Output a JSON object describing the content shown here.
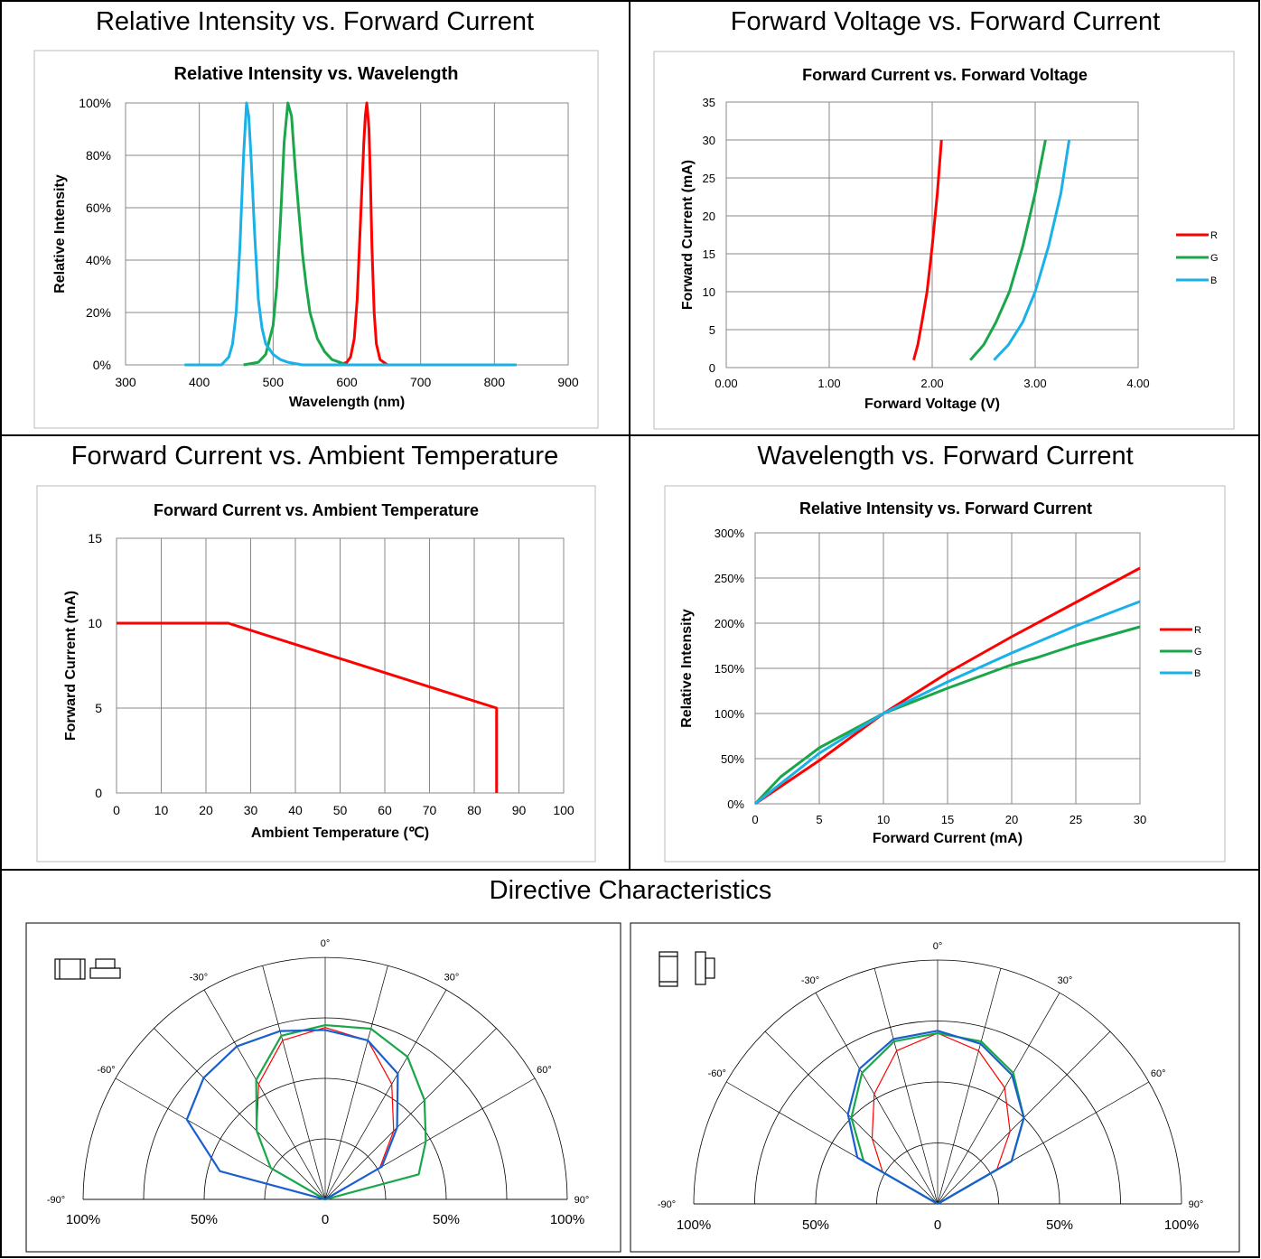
{
  "cell_titles": {
    "top_left": "Relative Intensity vs. Forward Current",
    "top_right": "Forward Voltage vs. Forward Current",
    "mid_left": "Forward Current vs. Ambient Temperature",
    "mid_right": "Wavelength vs. Forward Current",
    "bottom": "Directive Characteristics"
  },
  "colors": {
    "R": "#ff0000",
    "G": "#1aa64a",
    "B": "#1ab0e8",
    "blue_pol": "#1a5fd0",
    "grid": "#888888"
  },
  "chart_data": [
    {
      "id": "spectrum",
      "type": "line",
      "title": "Relative Intensity vs. Wavelength",
      "xlabel": "Wavelength (nm)",
      "ylabel": "Relative Intensity",
      "xlim": [
        300,
        900
      ],
      "ylim": [
        0,
        100
      ],
      "xticks": [
        "300",
        "400",
        "500",
        "600",
        "700",
        "800",
        "900"
      ],
      "yticks": [
        "0%",
        "20%",
        "40%",
        "60%",
        "80%",
        "100%"
      ],
      "grid": true,
      "series": [
        {
          "color": "R",
          "x": [
            590,
            600,
            605,
            610,
            614,
            617,
            620,
            623,
            625,
            627,
            628,
            630,
            632,
            634,
            637,
            640,
            645,
            655
          ],
          "y": [
            0,
            1,
            3,
            10,
            25,
            45,
            65,
            85,
            95,
            100,
            97,
            90,
            70,
            45,
            20,
            8,
            2,
            0
          ]
        },
        {
          "color": "G",
          "x": [
            460,
            480,
            490,
            500,
            505,
            510,
            515,
            520,
            525,
            530,
            535,
            540,
            545,
            550,
            560,
            570,
            580,
            590,
            600,
            620
          ],
          "y": [
            0,
            1,
            4,
            15,
            30,
            55,
            85,
            100,
            95,
            75,
            58,
            42,
            30,
            20,
            10,
            5,
            2,
            1,
            0,
            0
          ]
        },
        {
          "color": "B",
          "x": [
            380,
            420,
            430,
            440,
            445,
            450,
            455,
            460,
            464,
            467,
            470,
            475,
            480,
            485,
            490,
            500,
            510,
            520,
            540,
            560,
            600,
            700,
            800,
            830
          ],
          "y": [
            0,
            0,
            0,
            3,
            8,
            20,
            45,
            80,
            100,
            95,
            80,
            50,
            25,
            14,
            8,
            4,
            2,
            1,
            0,
            0,
            0,
            0,
            0,
            0
          ]
        }
      ]
    },
    {
      "id": "iv",
      "type": "line",
      "title": "Forward Current vs. Forward Voltage",
      "xlabel": "Forward Voltage  (V)",
      "ylabel": "Forward Current (mA)",
      "xlim": [
        0,
        4
      ],
      "ylim": [
        0,
        35
      ],
      "xticks": [
        "0.00",
        "1.00",
        "2.00",
        "3.00",
        "4.00"
      ],
      "yticks": [
        "0",
        "5",
        "10",
        "15",
        "20",
        "25",
        "30",
        "35"
      ],
      "legend_position": "right",
      "grid": true,
      "series": [
        {
          "name": "R",
          "color": "R",
          "x": [
            1.82,
            1.86,
            1.9,
            1.95,
            2.0,
            2.05,
            2.09
          ],
          "y": [
            1,
            3,
            6,
            10,
            16,
            23,
            30
          ]
        },
        {
          "name": "G",
          "x": [
            2.37,
            2.5,
            2.62,
            2.75,
            2.88,
            3.0,
            3.1
          ],
          "y": [
            1,
            3,
            6,
            10,
            16,
            23,
            30
          ],
          "color": "G"
        },
        {
          "name": "B",
          "x": [
            2.6,
            2.74,
            2.88,
            3.0,
            3.13,
            3.25,
            3.33
          ],
          "y": [
            1,
            3,
            6,
            10,
            16,
            23,
            30
          ],
          "color": "B"
        }
      ]
    },
    {
      "id": "derating",
      "type": "line",
      "title": "Forward Current vs. Ambient Temperature",
      "xlabel": "Ambient Temperature (℃)",
      "ylabel": "Forward Current (mA)",
      "xlim": [
        0,
        100
      ],
      "ylim": [
        0,
        15
      ],
      "xticks": [
        "0",
        "10",
        "20",
        "30",
        "40",
        "50",
        "60",
        "70",
        "80",
        "90",
        "100"
      ],
      "yticks": [
        "0",
        "5",
        "10",
        "15"
      ],
      "grid": true,
      "series": [
        {
          "color": "R",
          "x": [
            0,
            25,
            85,
            85
          ],
          "y": [
            10,
            10,
            5,
            0
          ]
        }
      ]
    },
    {
      "id": "intensity",
      "type": "line",
      "title": "Relative Intensity   vs. Forward Current",
      "xlabel": "Forward Current (mA)",
      "ylabel": "Relative Intensity",
      "xlim": [
        0,
        30
      ],
      "ylim": [
        0,
        300
      ],
      "xticks": [
        "0",
        "5",
        "10",
        "15",
        "20",
        "25",
        "30"
      ],
      "yticks": [
        "0%",
        "50%",
        "100%",
        "150%",
        "200%",
        "250%",
        "300%"
      ],
      "legend_position": "right",
      "grid": true,
      "series": [
        {
          "name": "R",
          "color": "R",
          "x": [
            0,
            5,
            10,
            15,
            20,
            25,
            30
          ],
          "y": [
            0,
            48,
            100,
            145,
            185,
            223,
            261
          ]
        },
        {
          "name": "G",
          "color": "G",
          "x": [
            0,
            2,
            5,
            10,
            15,
            20,
            22,
            25,
            30
          ],
          "y": [
            0,
            30,
            62,
            100,
            128,
            154,
            162,
            176,
            196
          ]
        },
        {
          "name": "B",
          "color": "B",
          "x": [
            0,
            5,
            10,
            15,
            20,
            25,
            30
          ],
          "y": [
            0,
            56,
            100,
            135,
            167,
            197,
            224
          ]
        }
      ]
    },
    {
      "id": "polar_left",
      "type": "line",
      "angle_labels": [
        "0°",
        "30°",
        "-30°",
        "60°",
        "-60°",
        "90°",
        "-90°"
      ],
      "radial_labels": [
        "100%",
        "50%",
        "0",
        "50%",
        "100%"
      ],
      "series": [
        {
          "color": "R",
          "angle_deg": [
            -90,
            -60,
            -45,
            -30,
            -15,
            0,
            15,
            30,
            45,
            60,
            90
          ],
          "r": [
            0,
            26,
            40,
            55,
            68,
            71,
            68,
            55,
            40,
            26,
            0
          ]
        },
        {
          "color": "G",
          "angle_deg": [
            -90,
            -60,
            -45,
            -30,
            -15,
            0,
            15,
            30,
            45,
            60,
            75,
            90
          ],
          "r": [
            0,
            26,
            40,
            57,
            70,
            72,
            73,
            68,
            58,
            48,
            40,
            0
          ]
        },
        {
          "color": "blue_pol",
          "angle_deg": [
            -90,
            -75,
            -60,
            -45,
            -30,
            -15,
            0,
            15,
            30,
            45,
            60,
            90
          ],
          "r": [
            0,
            45,
            66,
            71,
            73,
            72,
            70,
            68,
            60,
            42,
            27,
            0
          ]
        }
      ]
    },
    {
      "id": "polar_right",
      "type": "line",
      "angle_labels": [
        "0°",
        "30°",
        "-30°",
        "60°",
        "-60°",
        "90°",
        "-90°"
      ],
      "radial_labels": [
        "100%",
        "50%",
        "0",
        "50%",
        "100%"
      ],
      "series": [
        {
          "color": "R",
          "angle_deg": [
            -90,
            -60,
            -45,
            -30,
            -15,
            0,
            15,
            30,
            45,
            60,
            90
          ],
          "r": [
            0,
            26,
            38,
            52,
            65,
            70,
            65,
            55,
            42,
            28,
            0
          ]
        },
        {
          "color": "G",
          "angle_deg": [
            -90,
            -60,
            -45,
            -30,
            -15,
            0,
            15,
            30,
            45,
            60,
            90
          ],
          "r": [
            0,
            35,
            50,
            62,
            69,
            70,
            69,
            62,
            50,
            35,
            0
          ]
        },
        {
          "color": "blue_pol",
          "angle_deg": [
            -90,
            -60,
            -45,
            -30,
            -15,
            0,
            15,
            30,
            45,
            60,
            90
          ],
          "r": [
            0,
            38,
            52,
            64,
            70,
            71,
            68,
            61,
            50,
            35,
            0
          ]
        }
      ]
    }
  ]
}
